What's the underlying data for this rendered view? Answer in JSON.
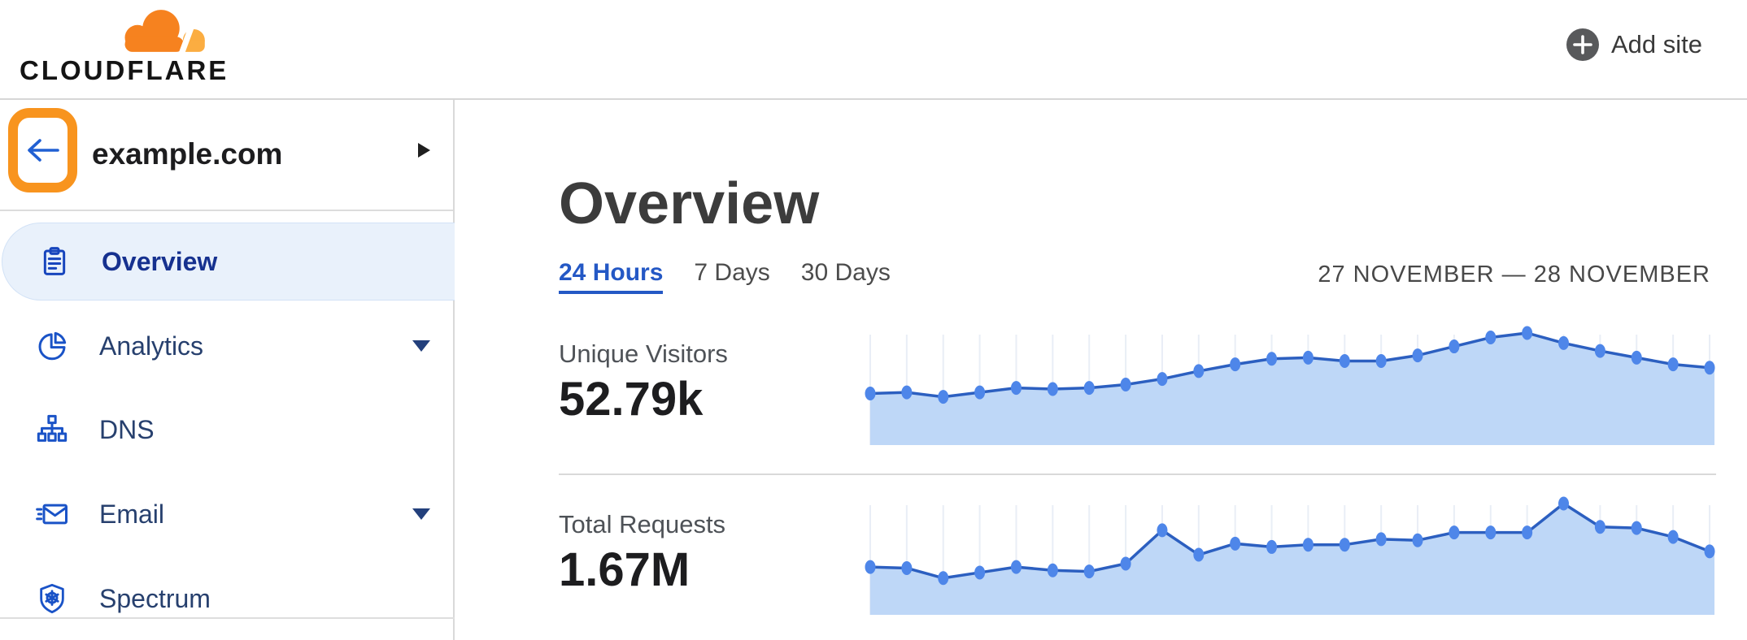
{
  "header": {
    "logo_text": "CLOUDFLARE",
    "add_site_label": "Add site"
  },
  "sidebar": {
    "site_name": "example.com",
    "items": [
      {
        "label": "Overview",
        "icon": "clipboard-icon",
        "selected": true,
        "caret": false
      },
      {
        "label": "Analytics",
        "icon": "pie-chart-icon",
        "selected": false,
        "caret": true
      },
      {
        "label": "DNS",
        "icon": "sitemap-icon",
        "selected": false,
        "caret": false
      },
      {
        "label": "Email",
        "icon": "email-icon",
        "selected": false,
        "caret": true
      },
      {
        "label": "Spectrum",
        "icon": "shield-icon",
        "selected": false,
        "caret": false
      }
    ]
  },
  "main": {
    "title": "Overview",
    "tabs": [
      {
        "label": "24 Hours",
        "active": true
      },
      {
        "label": "7 Days",
        "active": false
      },
      {
        "label": "30 Days",
        "active": false
      }
    ],
    "date_range": "27 NOVEMBER — 28 NOVEMBER"
  },
  "chart_data": [
    {
      "type": "area",
      "title": "Unique Visitors",
      "total": "52.79k",
      "x_axis": "time over 24 hours (27–28 November)",
      "x_count": 24,
      "ylim": [
        0,
        100
      ],
      "grid": "vertical-only",
      "legend": "none",
      "values_pct_of_max": [
        46,
        47,
        43,
        47,
        51,
        50,
        51,
        54,
        59,
        66,
        72,
        77,
        78,
        75,
        75,
        80,
        88,
        96,
        100,
        91,
        84,
        78,
        72,
        69
      ]
    },
    {
      "type": "area",
      "title": "Total Requests",
      "total": "1.67M",
      "x_axis": "time over 24 hours (27–28 November)",
      "x_count": 24,
      "ylim": [
        0,
        100
      ],
      "grid": "vertical-only",
      "legend": "none",
      "values_pct_of_max": [
        43,
        42,
        33,
        38,
        43,
        40,
        39,
        46,
        76,
        54,
        64,
        61,
        63,
        63,
        68,
        67,
        74,
        74,
        74,
        100,
        79,
        78,
        70,
        57
      ]
    }
  ],
  "colors": {
    "brand_orange": "#F6821F",
    "brand_orange_light": "#FBAD41",
    "annotation_orange": "#F8941E",
    "chart_line": "#2c5fc0",
    "chart_dot": "#4e86e9",
    "chart_fill": "#bed7f7",
    "chart_grid": "#e9eef6",
    "active_tab_blue": "#2458c5",
    "nav_icon_blue": "#1a53c7",
    "nav_selected_bg": "#e9f1fb"
  }
}
